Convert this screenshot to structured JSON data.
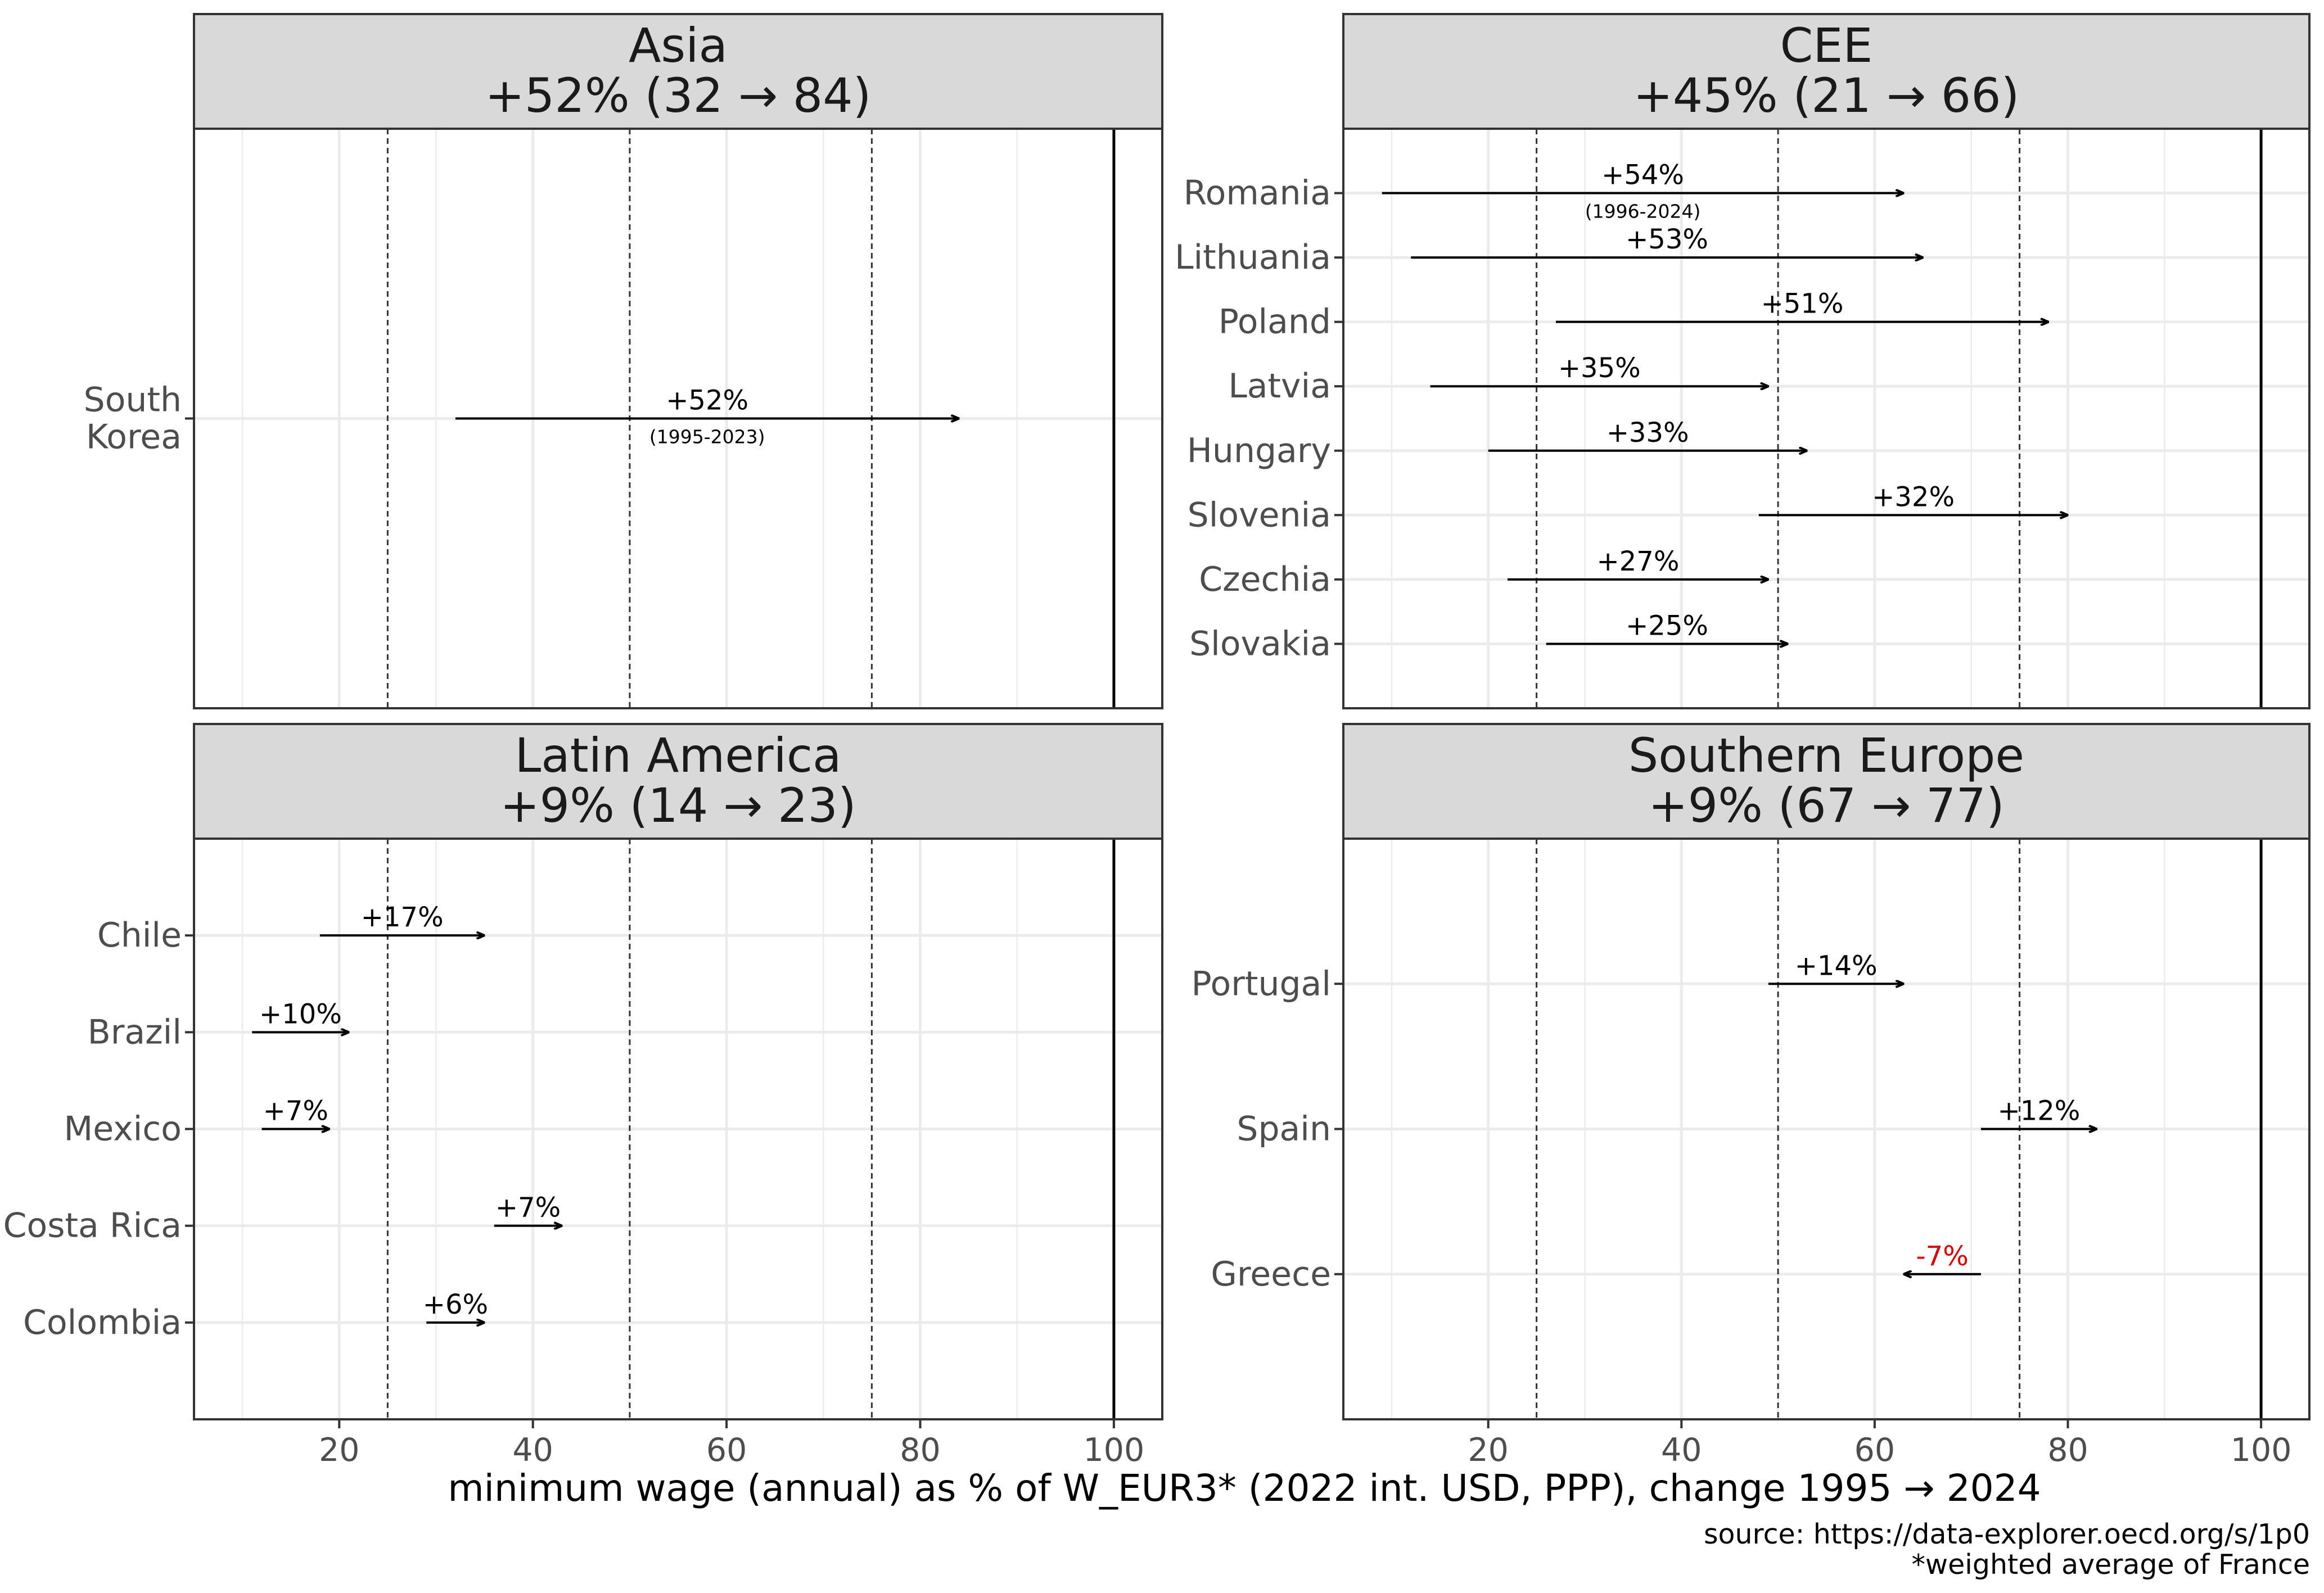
{
  "chart_data": {
    "type": "arrow-dumbbell",
    "xlabel": "minimum wage (annual) as % of W_EUR3* (2022 int. USD, PPP), change 1995 → 2024",
    "x_ticks": [
      "20",
      "40",
      "60",
      "80",
      "100"
    ],
    "x_tick_values": [
      20,
      40,
      60,
      80,
      100
    ],
    "xlim": [
      5,
      105
    ],
    "reference_lines": {
      "dashed": [
        25,
        50,
        75
      ],
      "solid": [
        100
      ]
    },
    "caption_lines": [
      "source: https://data-explorer.oecd.org/s/1p0",
      "*weighted average of France"
    ],
    "panels": [
      {
        "title": "Asia",
        "subtitle": "+52% (32 → 84)",
        "items": [
          {
            "country": "South Korea",
            "label_lines": [
              "South",
              "Korea"
            ],
            "start": 32,
            "end": 84,
            "change": "+52%",
            "years": "(1995-2023)"
          }
        ]
      },
      {
        "title": "CEE",
        "subtitle": "+45% (21 → 66)",
        "items": [
          {
            "country": "Romania",
            "label_lines": [
              "Romania"
            ],
            "start": 9,
            "end": 63,
            "change": "+54%",
            "years": "(1996-2024)"
          },
          {
            "country": "Lithuania",
            "label_lines": [
              "Lithuania"
            ],
            "start": 12,
            "end": 65,
            "change": "+53%"
          },
          {
            "country": "Poland",
            "label_lines": [
              "Poland"
            ],
            "start": 27,
            "end": 78,
            "change": "+51%"
          },
          {
            "country": "Latvia",
            "label_lines": [
              "Latvia"
            ],
            "start": 14,
            "end": 49,
            "change": "+35%"
          },
          {
            "country": "Hungary",
            "label_lines": [
              "Hungary"
            ],
            "start": 20,
            "end": 53,
            "change": "+33%"
          },
          {
            "country": "Slovenia",
            "label_lines": [
              "Slovenia"
            ],
            "start": 48,
            "end": 80,
            "change": "+32%"
          },
          {
            "country": "Czechia",
            "label_lines": [
              "Czechia"
            ],
            "start": 22,
            "end": 49,
            "change": "+27%"
          },
          {
            "country": "Slovakia",
            "label_lines": [
              "Slovakia"
            ],
            "start": 26,
            "end": 51,
            "change": "+25%"
          }
        ]
      },
      {
        "title": "Latin America",
        "subtitle": "+9% (14 → 23)",
        "items": [
          {
            "country": "Chile",
            "label_lines": [
              "Chile"
            ],
            "start": 18,
            "end": 35,
            "change": "+17%"
          },
          {
            "country": "Brazil",
            "label_lines": [
              "Brazil"
            ],
            "start": 11,
            "end": 21,
            "change": "+10%"
          },
          {
            "country": "Mexico",
            "label_lines": [
              "Mexico"
            ],
            "start": 12,
            "end": 19,
            "change": "+7%"
          },
          {
            "country": "Costa Rica",
            "label_lines": [
              "Costa Rica"
            ],
            "start": 36,
            "end": 43,
            "change": "+7%"
          },
          {
            "country": "Colombia",
            "label_lines": [
              "Colombia"
            ],
            "start": 29,
            "end": 35,
            "change": "+6%"
          }
        ]
      },
      {
        "title": "Southern Europe",
        "subtitle": "+9% (67 → 77)",
        "items": [
          {
            "country": "Portugal",
            "label_lines": [
              "Portugal"
            ],
            "start": 49,
            "end": 63,
            "change": "+14%"
          },
          {
            "country": "Spain",
            "label_lines": [
              "Spain"
            ],
            "start": 71,
            "end": 83,
            "change": "+12%"
          },
          {
            "country": "Greece",
            "label_lines": [
              "Greece"
            ],
            "start": 71,
            "end": 63,
            "change": "-7%"
          }
        ]
      }
    ]
  },
  "colors": {
    "strip_fill": "#d9d9d9",
    "frame": "#333333",
    "grid": "#ebebeb",
    "arrow": "#000000",
    "negative": "#e00000",
    "ref_line": "#333333"
  }
}
